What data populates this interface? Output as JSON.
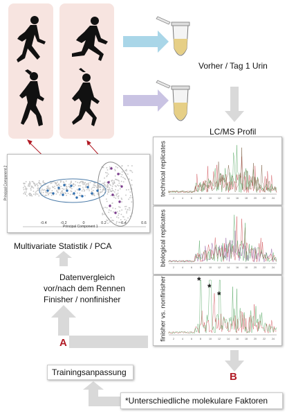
{
  "labels": {
    "before_urine": "Vorher / Tag 1 Urin",
    "lcms_profile": "LC/MS Profil",
    "multivariate": "Multivariate Statistik / PCA",
    "data_compare_1": "Datenvergleich",
    "data_compare_2": "vor/nach dem Rennen",
    "data_compare_3": "Finisher / nonfinisher",
    "training": "Trainingsanpassung",
    "factors": "*Unterschiedliche molekulare Faktoren",
    "label_a": "A",
    "label_b": "B"
  },
  "chromatograms": {
    "technical": "technical replicates",
    "biological": "biological replicates",
    "finisher": "finisher vs. nonfinisher",
    "peak_marker": "*"
  },
  "pca": {
    "ylabel": "Principal Component 2",
    "xlabel": "Principal Component 1",
    "xticks": [
      "-0.4",
      "-0.2",
      "0",
      "0.2",
      "0.4",
      "0.6"
    ]
  },
  "colors": {
    "arrow_light_blue": "#a9d6e8",
    "arrow_lavender": "#c9c3e3",
    "arrow_grey": "#d9d9d9",
    "label_red": "#b11a24",
    "panel_rose": "#f7e4e0",
    "series_red": "#c8323a",
    "series_green": "#3a9a4a",
    "series_purple": "#7a3a8c"
  }
}
